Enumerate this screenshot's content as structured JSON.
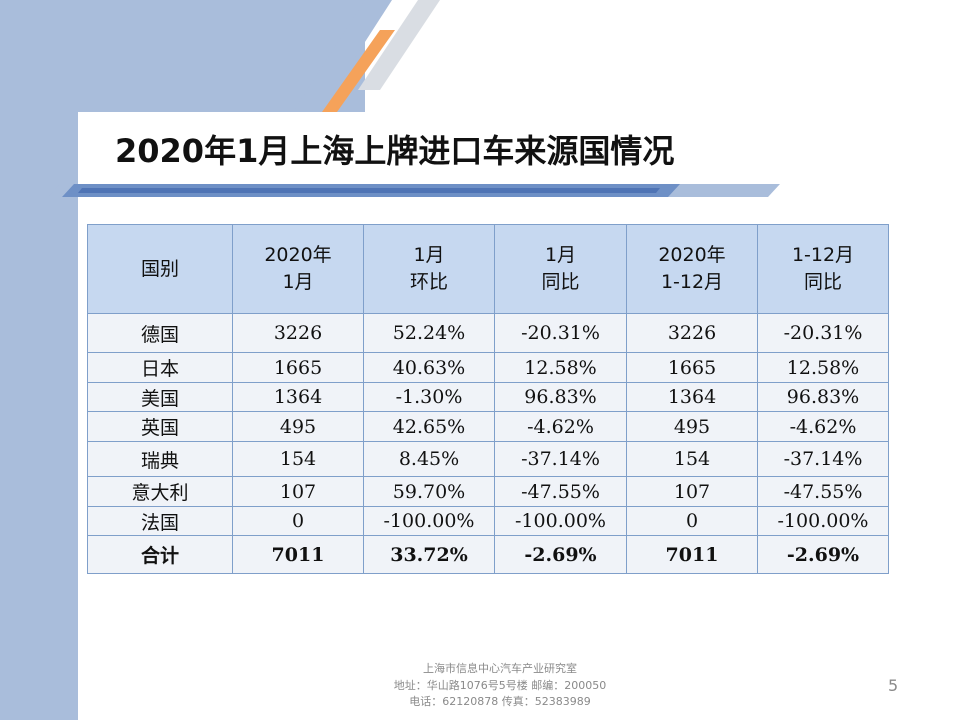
{
  "slide": {
    "title": "2020年1月上海上牌进口车来源国情况",
    "page_number": "5"
  },
  "table": {
    "headers": [
      [
        "国别"
      ],
      [
        "2020年",
        "1月"
      ],
      [
        "1月",
        "环比"
      ],
      [
        "1月",
        "同比"
      ],
      [
        "2020年",
        "1-12月"
      ],
      [
        "1-12月",
        "同比"
      ]
    ],
    "rows": [
      [
        "德国",
        "3226",
        "52.24%",
        "-20.31%",
        "3226",
        "-20.31%"
      ],
      [
        "日本",
        "1665",
        "40.63%",
        "12.58%",
        "1665",
        "12.58%"
      ],
      [
        "美国",
        "1364",
        "-1.30%",
        "96.83%",
        "1364",
        "96.83%"
      ],
      [
        "英国",
        "495",
        "42.65%",
        "-4.62%",
        "495",
        "-4.62%"
      ],
      [
        "瑞典",
        "154",
        "8.45%",
        "-37.14%",
        "154",
        "-37.14%"
      ],
      [
        "意大利",
        "107",
        "59.70%",
        "-47.55%",
        "107",
        "-47.55%"
      ],
      [
        "法国",
        "0",
        "-100.00%",
        "-100.00%",
        "0",
        "-100.00%"
      ]
    ],
    "total": [
      "合计",
      "7011",
      "33.72%",
      "-2.69%",
      "7011",
      "-2.69%"
    ]
  },
  "footer": {
    "line1": "上海市信息中心汽车产业研究室",
    "line2": "地址：华山路1076号5号楼   邮编：200050",
    "line3": "电话：62120878  传真：52383989"
  },
  "colors": {
    "band": "#a9bddb",
    "accent_orange": "#f5a25a",
    "header_fill": "#c6d8f0",
    "cell_fill": "#f0f3f8",
    "border": "#7f9fca"
  }
}
